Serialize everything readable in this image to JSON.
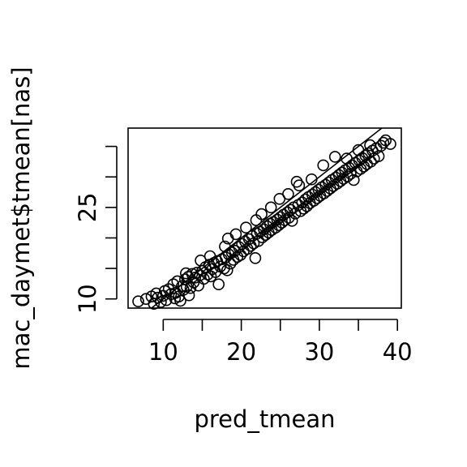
{
  "chart_data": {
    "type": "scatter",
    "xlabel": "pred_tmean",
    "ylabel": "mac_daymet$tmean[nas]",
    "xlim": [
      5.5,
      40.5
    ],
    "ylim": [
      8.5,
      38
    ],
    "x_ticks": [
      10,
      15,
      20,
      25,
      30,
      35,
      40
    ],
    "x_tick_labels": [
      "10",
      "",
      "20",
      "",
      "30",
      "",
      "40"
    ],
    "y_ticks": [
      10,
      15,
      20,
      25,
      30,
      35
    ],
    "y_tick_labels": [
      "10",
      "",
      "",
      "25",
      "",
      ""
    ],
    "reference_line": {
      "intercept": 0,
      "slope": 1
    },
    "points": [
      [
        6.8,
        9.6
      ],
      [
        7.8,
        10.0
      ],
      [
        8.5,
        10.4
      ],
      [
        8.8,
        9.2
      ],
      [
        9.1,
        10.9
      ],
      [
        9.3,
        10.2
      ],
      [
        9.7,
        9.5
      ],
      [
        10.0,
        10.5
      ],
      [
        10.2,
        11.3
      ],
      [
        10.4,
        9.8
      ],
      [
        10.7,
        11.6
      ],
      [
        11.0,
        10.8
      ],
      [
        11.3,
        12.4
      ],
      [
        11.6,
        11.0
      ],
      [
        11.8,
        12.9
      ],
      [
        12.0,
        10.4
      ],
      [
        12.2,
        9.7
      ],
      [
        12.4,
        12.1
      ],
      [
        12.6,
        11.5
      ],
      [
        12.8,
        13.2
      ],
      [
        13.0,
        12.0
      ],
      [
        13.2,
        13.6
      ],
      [
        13.3,
        10.6
      ],
      [
        13.5,
        11.8
      ],
      [
        13.7,
        14.1
      ],
      [
        13.9,
        12.7
      ],
      [
        14.1,
        13.5
      ],
      [
        14.3,
        14.3
      ],
      [
        14.5,
        12.2
      ],
      [
        14.7,
        13.9
      ],
      [
        15.0,
        14.6
      ],
      [
        15.2,
        13.3
      ],
      [
        15.4,
        15.2
      ],
      [
        15.7,
        14.0
      ],
      [
        15.9,
        15.6
      ],
      [
        16.1,
        13.7
      ],
      [
        16.3,
        14.9
      ],
      [
        16.5,
        15.9
      ],
      [
        16.7,
        14.4
      ],
      [
        16.9,
        16.2
      ],
      [
        17.1,
        12.4
      ],
      [
        17.3,
        15.3
      ],
      [
        17.5,
        16.5
      ],
      [
        17.8,
        15.0
      ],
      [
        18.0,
        16.8
      ],
      [
        18.2,
        14.7
      ],
      [
        18.4,
        17.3
      ],
      [
        18.6,
        15.8
      ],
      [
        18.8,
        17.6
      ],
      [
        19.0,
        16.4
      ],
      [
        19.2,
        17.9
      ],
      [
        19.5,
        16.9
      ],
      [
        19.7,
        18.5
      ],
      [
        19.9,
        17.2
      ],
      [
        20.1,
        19.0
      ],
      [
        20.3,
        17.8
      ],
      [
        20.5,
        19.4
      ],
      [
        20.8,
        18.2
      ],
      [
        21.0,
        19.8
      ],
      [
        21.2,
        18.7
      ],
      [
        21.4,
        20.3
      ],
      [
        21.6,
        19.1
      ],
      [
        21.8,
        16.7
      ],
      [
        22.0,
        20.7
      ],
      [
        22.2,
        19.5
      ],
      [
        22.4,
        21.0
      ],
      [
        22.7,
        20.1
      ],
      [
        22.9,
        21.4
      ],
      [
        23.1,
        20.5
      ],
      [
        23.3,
        21.9
      ],
      [
        23.5,
        20.9
      ],
      [
        23.7,
        22.3
      ],
      [
        23.9,
        21.3
      ],
      [
        24.1,
        22.6
      ],
      [
        24.4,
        21.7
      ],
      [
        24.6,
        23.0
      ],
      [
        24.8,
        22.1
      ],
      [
        25.0,
        23.4
      ],
      [
        25.2,
        22.5
      ],
      [
        25.4,
        23.8
      ],
      [
        25.6,
        22.9
      ],
      [
        25.9,
        24.2
      ],
      [
        26.1,
        23.3
      ],
      [
        26.3,
        24.6
      ],
      [
        26.5,
        22.8
      ],
      [
        26.7,
        25.0
      ],
      [
        26.9,
        24.0
      ],
      [
        27.1,
        29.2
      ],
      [
        27.3,
        25.4
      ],
      [
        27.6,
        24.4
      ],
      [
        27.8,
        25.8
      ],
      [
        28.0,
        24.8
      ],
      [
        28.2,
        26.3
      ],
      [
        28.4,
        25.2
      ],
      [
        28.6,
        26.7
      ],
      [
        28.8,
        25.7
      ],
      [
        29.1,
        27.1
      ],
      [
        29.3,
        26.1
      ],
      [
        29.5,
        27.5
      ],
      [
        29.7,
        26.5
      ],
      [
        29.9,
        27.9
      ],
      [
        30.1,
        26.9
      ],
      [
        30.3,
        28.3
      ],
      [
        30.6,
        27.3
      ],
      [
        30.8,
        28.7
      ],
      [
        31.0,
        27.7
      ],
      [
        31.2,
        29.1
      ],
      [
        31.4,
        28.1
      ],
      [
        31.6,
        29.5
      ],
      [
        31.8,
        28.5
      ],
      [
        32.1,
        29.9
      ],
      [
        32.3,
        28.9
      ],
      [
        32.5,
        30.3
      ],
      [
        32.7,
        29.3
      ],
      [
        32.9,
        30.7
      ],
      [
        33.1,
        29.7
      ],
      [
        33.3,
        31.1
      ],
      [
        33.6,
        30.1
      ],
      [
        33.8,
        31.5
      ],
      [
        34.0,
        30.5
      ],
      [
        34.2,
        31.9
      ],
      [
        34.4,
        29.5
      ],
      [
        34.6,
        32.3
      ],
      [
        34.8,
        30.9
      ],
      [
        35.1,
        32.7
      ],
      [
        35.3,
        31.3
      ],
      [
        35.5,
        33.1
      ],
      [
        35.7,
        31.7
      ],
      [
        35.9,
        33.5
      ],
      [
        36.1,
        32.1
      ],
      [
        36.3,
        33.9
      ],
      [
        36.6,
        32.5
      ],
      [
        36.8,
        34.3
      ],
      [
        37.0,
        33.0
      ],
      [
        37.3,
        34.7
      ],
      [
        37.6,
        33.4
      ],
      [
        37.9,
        35.1
      ],
      [
        38.2,
        35.6
      ],
      [
        38.5,
        36.0
      ],
      [
        39.1,
        35.4
      ],
      [
        11.5,
        10.1
      ],
      [
        14.8,
        16.3
      ],
      [
        17.9,
        18.6
      ],
      [
        20.6,
        21.7
      ],
      [
        23.8,
        25.0
      ],
      [
        26.0,
        27.2
      ],
      [
        29.0,
        29.6
      ],
      [
        32.0,
        33.3
      ],
      [
        35.0,
        34.4
      ],
      [
        18.3,
        19.9
      ],
      [
        21.9,
        22.9
      ],
      [
        24.9,
        26.4
      ],
      [
        27.4,
        28.6
      ],
      [
        30.5,
        31.9
      ],
      [
        33.5,
        33.0
      ],
      [
        36.5,
        35.2
      ],
      [
        12.9,
        14.2
      ],
      [
        16.0,
        17.0
      ],
      [
        19.3,
        20.6
      ],
      [
        22.6,
        23.9
      ]
    ]
  }
}
